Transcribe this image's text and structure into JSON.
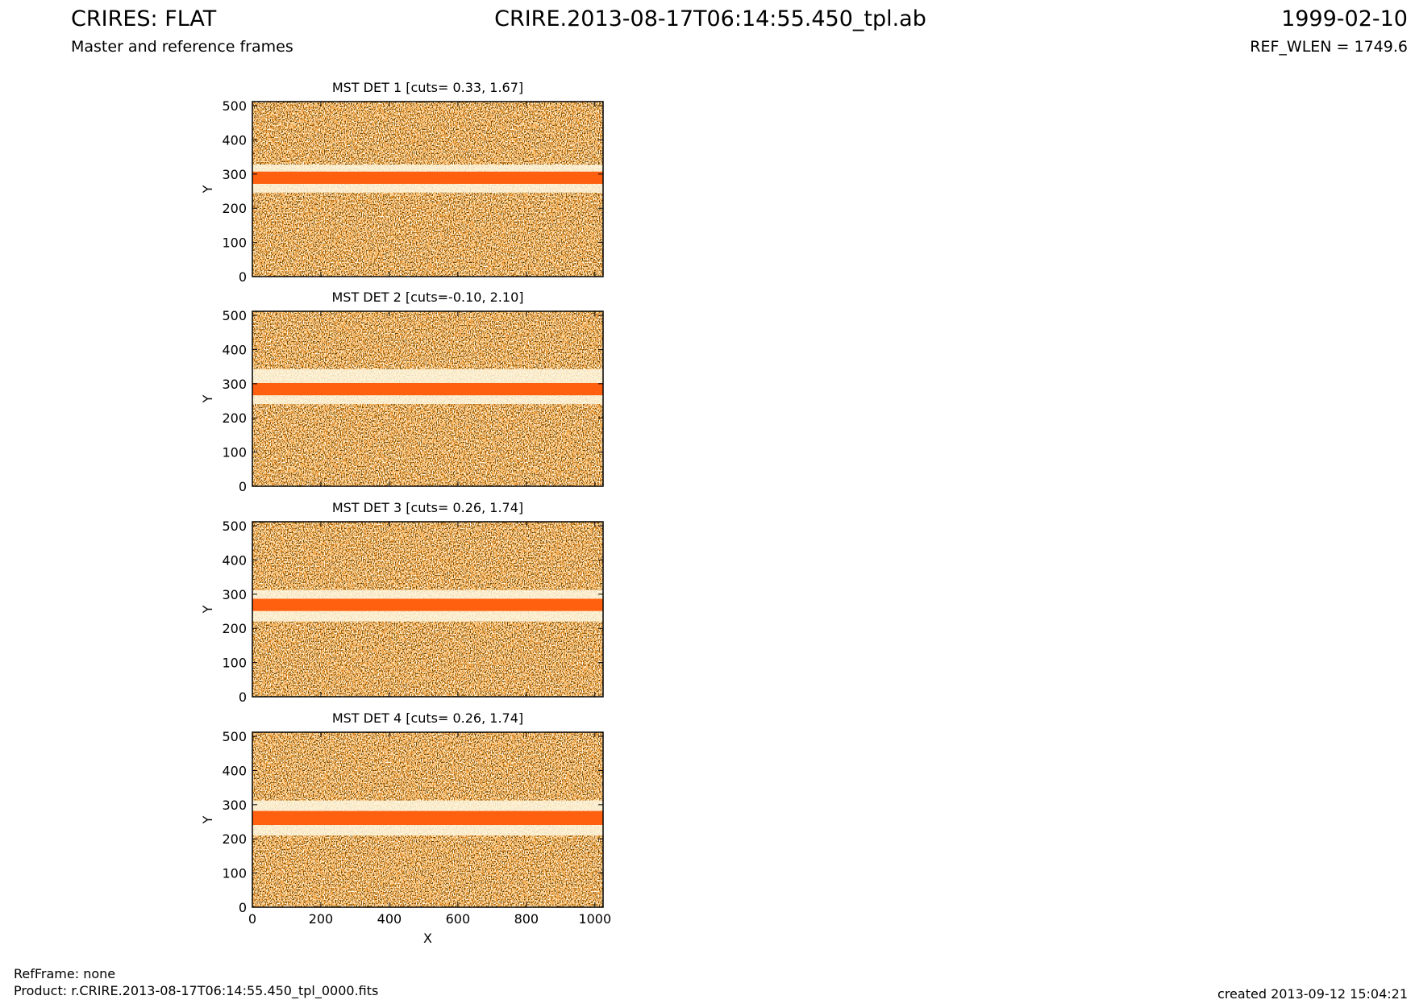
{
  "header": {
    "title": "CRIRES: FLAT",
    "subtitle": "Master and reference frames",
    "file": "CRIRE.2013-08-17T06:14:55.450_tpl.ab",
    "date": "1999-02-10",
    "ref_wlen": "REF_WLEN = 1749.6"
  },
  "footer": {
    "ref_frame": "RefFrame: none",
    "product": "Product: r.CRIRE.2013-08-17T06:14:55.450_tpl_0000.fits",
    "created": "created 2013-09-12 15:04:21"
  },
  "chart_data": [
    {
      "type": "image",
      "title": "MST DET 1 [cuts= 0.33, 1.67]",
      "ylabel": "Y",
      "xlim": [
        0,
        1024
      ],
      "ylim": [
        0,
        512
      ],
      "xticks": [
        0,
        200,
        400,
        600,
        800,
        1000
      ],
      "yticks": [
        0,
        100,
        200,
        300,
        400,
        500
      ],
      "show_xticklabels": false
    },
    {
      "type": "image",
      "title": "MST DET 2 [cuts=-0.10, 2.10]",
      "ylabel": "Y",
      "xlim": [
        0,
        1024
      ],
      "ylim": [
        0,
        512
      ],
      "xticks": [
        0,
        200,
        400,
        600,
        800,
        1000
      ],
      "yticks": [
        0,
        100,
        200,
        300,
        400,
        500
      ],
      "show_xticklabels": false
    },
    {
      "type": "image",
      "title": "MST DET 3 [cuts= 0.26, 1.74]",
      "ylabel": "Y",
      "xlim": [
        0,
        1024
      ],
      "ylim": [
        0,
        512
      ],
      "xticks": [
        0,
        200,
        400,
        600,
        800,
        1000
      ],
      "yticks": [
        0,
        100,
        200,
        300,
        400,
        500
      ],
      "show_xticklabels": false
    },
    {
      "type": "image",
      "title": "MST DET 4 [cuts= 0.26, 1.74]",
      "ylabel": "Y",
      "xlabel": "X",
      "xlim": [
        0,
        1024
      ],
      "ylim": [
        0,
        512
      ],
      "xticks": [
        0,
        200,
        400,
        600,
        800,
        1000
      ],
      "yticks": [
        0,
        100,
        200,
        300,
        400,
        500
      ],
      "show_xticklabels": true
    }
  ]
}
